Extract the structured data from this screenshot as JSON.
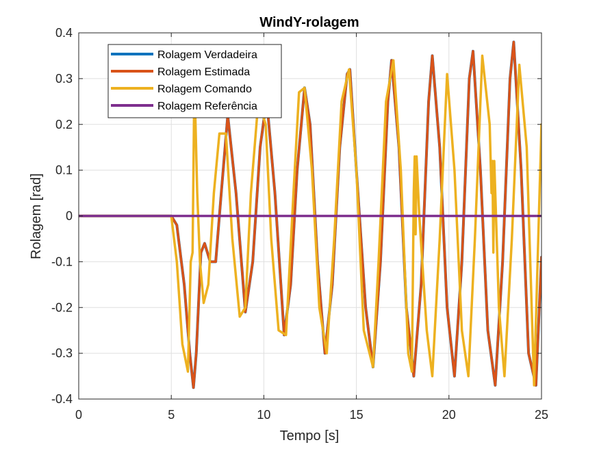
{
  "chart_data": {
    "type": "line",
    "title": "WindY-rolagem",
    "xlabel": "Tempo [s]",
    "ylabel": "Rolagem [rad]",
    "xlim": [
      0,
      25
    ],
    "ylim": [
      -0.4,
      0.4
    ],
    "xticks": [
      0,
      5,
      10,
      15,
      20,
      25
    ],
    "xtick_labels": [
      "0",
      "5",
      "10",
      "15",
      "20",
      "25"
    ],
    "yticks": [
      -0.4,
      -0.3,
      -0.2,
      -0.1,
      0,
      0.1,
      0.2,
      0.3,
      0.4
    ],
    "ytick_labels": [
      "-0.4",
      "-0.3",
      "-0.2",
      "-0.1",
      "0",
      "0.1",
      "0.2",
      "0.3",
      "0.4"
    ],
    "grid": true,
    "legend_position": "top-left",
    "series": [
      {
        "name": "Rolagem Verdadeira",
        "color": "#0072BD",
        "x": [
          0,
          5,
          5.3,
          5.7,
          6.0,
          6.2,
          6.35,
          6.6,
          6.8,
          7.1,
          7.4,
          7.7,
          8.05,
          8.5,
          9.0,
          9.4,
          9.8,
          10.15,
          10.6,
          11.1,
          11.45,
          11.8,
          12.2,
          12.5,
          12.9,
          13.3,
          13.7,
          14.1,
          14.5,
          14.65,
          15.0,
          15.5,
          15.9,
          16.3,
          16.7,
          16.9,
          17.3,
          17.7,
          18.1,
          18.5,
          18.9,
          19.1,
          19.5,
          19.9,
          20.3,
          20.7,
          21.1,
          21.3,
          21.7,
          22.1,
          22.5,
          22.9,
          23.3,
          23.5,
          23.9,
          24.3,
          24.7,
          25.0
        ],
        "y": [
          0,
          0,
          -0.02,
          -0.15,
          -0.3,
          -0.375,
          -0.3,
          -0.08,
          -0.06,
          -0.1,
          -0.1,
          0.05,
          0.22,
          0.05,
          -0.21,
          -0.1,
          0.15,
          0.255,
          0.05,
          -0.26,
          -0.15,
          0.1,
          0.28,
          0.2,
          -0.1,
          -0.3,
          -0.15,
          0.15,
          0.31,
          0.32,
          0.1,
          -0.2,
          -0.33,
          -0.1,
          0.25,
          0.34,
          0.15,
          -0.2,
          -0.35,
          -0.15,
          0.25,
          0.35,
          0.15,
          -0.2,
          -0.35,
          -0.1,
          0.3,
          0.36,
          0.1,
          -0.25,
          -0.37,
          -0.1,
          0.3,
          0.38,
          0.1,
          -0.3,
          -0.37,
          -0.09
        ]
      },
      {
        "name": "Rolagem Estimada",
        "color": "#D95319",
        "x": [
          0,
          5,
          5.3,
          5.7,
          6.0,
          6.2,
          6.35,
          6.6,
          6.8,
          7.1,
          7.4,
          7.7,
          8.05,
          8.5,
          9.0,
          9.4,
          9.8,
          10.15,
          10.6,
          11.1,
          11.45,
          11.8,
          12.2,
          12.5,
          12.9,
          13.3,
          13.7,
          14.1,
          14.5,
          14.65,
          15.0,
          15.5,
          15.9,
          16.3,
          16.7,
          16.9,
          17.3,
          17.7,
          18.1,
          18.5,
          18.9,
          19.1,
          19.5,
          19.9,
          20.3,
          20.7,
          21.1,
          21.3,
          21.7,
          22.1,
          22.5,
          22.9,
          23.3,
          23.5,
          23.9,
          24.3,
          24.7,
          25.0
        ],
        "y": [
          0,
          0,
          -0.02,
          -0.15,
          -0.3,
          -0.375,
          -0.3,
          -0.08,
          -0.06,
          -0.1,
          -0.1,
          0.05,
          0.22,
          0.05,
          -0.21,
          -0.1,
          0.15,
          0.255,
          0.05,
          -0.26,
          -0.15,
          0.1,
          0.28,
          0.2,
          -0.1,
          -0.3,
          -0.15,
          0.15,
          0.31,
          0.32,
          0.1,
          -0.2,
          -0.33,
          -0.1,
          0.25,
          0.34,
          0.15,
          -0.2,
          -0.35,
          -0.15,
          0.25,
          0.35,
          0.15,
          -0.2,
          -0.35,
          -0.1,
          0.3,
          0.36,
          0.1,
          -0.25,
          -0.37,
          -0.1,
          0.3,
          0.38,
          0.1,
          -0.3,
          -0.37,
          -0.09
        ]
      },
      {
        "name": "Rolagem Comando",
        "color": "#EDB120",
        "x": [
          0,
          5.0,
          5.3,
          5.6,
          5.9,
          6.05,
          6.15,
          6.25,
          6.4,
          6.55,
          6.75,
          7.0,
          7.3,
          7.6,
          7.95,
          8.3,
          8.7,
          9.0,
          9.3,
          9.7,
          10.1,
          10.4,
          10.8,
          11.2,
          11.6,
          11.9,
          12.2,
          12.6,
          13.0,
          13.4,
          13.8,
          14.2,
          14.6,
          15.0,
          15.4,
          15.9,
          16.2,
          16.6,
          17.0,
          17.4,
          17.8,
          18.0,
          18.1,
          18.15,
          18.2,
          18.25,
          18.4,
          18.8,
          19.1,
          19.5,
          19.9,
          20.3,
          20.7,
          21.05,
          21.4,
          21.8,
          22.2,
          22.3,
          22.35,
          22.4,
          22.45,
          22.7,
          23.0,
          23.4,
          23.8,
          24.2,
          24.6,
          25.0
        ],
        "y": [
          0,
          0,
          -0.1,
          -0.28,
          -0.34,
          -0.1,
          -0.08,
          0.3,
          0.05,
          -0.1,
          -0.19,
          -0.15,
          0.05,
          0.18,
          0.18,
          -0.05,
          -0.22,
          -0.2,
          0.05,
          0.25,
          0.2,
          -0.05,
          -0.25,
          -0.26,
          0.05,
          0.27,
          0.28,
          0.1,
          -0.2,
          -0.3,
          -0.05,
          0.25,
          0.32,
          0.1,
          -0.25,
          -0.33,
          -0.1,
          0.25,
          0.34,
          0.1,
          -0.3,
          -0.34,
          0.05,
          0.13,
          -0.04,
          0.13,
          0.0,
          -0.25,
          -0.35,
          -0.05,
          0.31,
          0.1,
          -0.25,
          -0.35,
          -0.05,
          0.35,
          0.2,
          0.05,
          0.12,
          -0.08,
          0.12,
          -0.2,
          -0.35,
          -0.05,
          0.33,
          0.15,
          -0.37,
          0.2
        ]
      },
      {
        "name": "Rolagem Referência",
        "color": "#7E2F8E",
        "x": [
          0,
          25
        ],
        "y": [
          0,
          0
        ]
      }
    ]
  }
}
